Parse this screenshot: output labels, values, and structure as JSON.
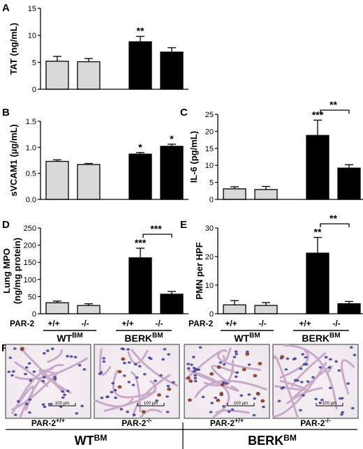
{
  "colors": {
    "wt_bar": "#d9d9d9",
    "berk_bar": "#000000",
    "axis": "#000000"
  },
  "row_labels": {
    "par2": "PAR-2"
  },
  "groups": {
    "wt": {
      "main": "WT",
      "sup": "BM"
    },
    "berk": {
      "main": "BERK",
      "sup": "BM"
    }
  },
  "genotypes": [
    "+/+",
    "-/-",
    "+/+",
    "-/-"
  ],
  "panel_f": {
    "letter": "F",
    "scale_label": "100 μm",
    "images": [
      {
        "label_main": "PAR-2",
        "label_sup": "+/+",
        "icon": "lung-histology-image"
      },
      {
        "label_main": "PAR-2",
        "label_sup": "-/-",
        "icon": "lung-histology-image"
      },
      {
        "label_main": "PAR-2",
        "label_sup": "+/+",
        "icon": "lung-histology-image"
      },
      {
        "label_main": "PAR-2",
        "label_sup": "-/-",
        "icon": "lung-histology-image"
      }
    ]
  },
  "chart_data": [
    {
      "id": "A",
      "letter": "A",
      "type": "bar",
      "ylabel": "TAT (ng/mL)",
      "ylim": [
        0,
        15
      ],
      "yticks": [
        0,
        5,
        10,
        15
      ],
      "categories": [
        "WT PAR-2+/+",
        "WT PAR-2-/-",
        "BERK PAR-2+/+",
        "BERK PAR-2-/-"
      ],
      "values": [
        5.2,
        5.1,
        8.8,
        6.9
      ],
      "errors": [
        0.9,
        0.6,
        1.0,
        0.8
      ],
      "annotations": [
        "",
        "",
        "**",
        ""
      ],
      "brackets": []
    },
    {
      "id": "B",
      "letter": "B",
      "type": "bar",
      "ylabel": "sVCAM1 (µg/mL)",
      "ylim": [
        0,
        1.5
      ],
      "yticks": [
        0.0,
        0.5,
        1.0,
        1.5
      ],
      "categories": [
        "WT PAR-2+/+",
        "WT PAR-2-/-",
        "BERK PAR-2+/+",
        "BERK PAR-2-/-"
      ],
      "values": [
        0.73,
        0.67,
        0.87,
        1.02
      ],
      "errors": [
        0.03,
        0.02,
        0.03,
        0.04
      ],
      "annotations": [
        "",
        "",
        "*",
        "*"
      ],
      "brackets": []
    },
    {
      "id": "C",
      "letter": "C",
      "type": "bar",
      "ylabel": "IL-6 (pg/mL)",
      "ylim": [
        0,
        25
      ],
      "yticks": [
        0,
        5,
        10,
        15,
        20,
        25
      ],
      "categories": [
        "WT PAR-2+/+",
        "WT PAR-2-/-",
        "BERK PAR-2+/+",
        "BERK PAR-2-/-"
      ],
      "values": [
        3.1,
        2.9,
        18.8,
        9.2
      ],
      "errors": [
        0.6,
        0.9,
        4.5,
        1.0
      ],
      "annotations": [
        "",
        "",
        "***",
        ""
      ],
      "brackets": [
        {
          "from": 2,
          "to": 3,
          "label": "**"
        }
      ]
    },
    {
      "id": "D",
      "letter": "D",
      "type": "bar",
      "ylabel": "Lung MPO\n(ng/mg protein)",
      "ylim": [
        0,
        250
      ],
      "yticks": [
        0,
        50,
        100,
        150,
        200,
        250
      ],
      "categories": [
        "WT PAR-2+/+",
        "WT PAR-2-/-",
        "BERK PAR-2+/+",
        "BERK PAR-2-/-"
      ],
      "values": [
        32,
        24,
        163,
        57
      ],
      "errors": [
        5,
        5,
        28,
        8
      ],
      "annotations": [
        "",
        "",
        "***",
        ""
      ],
      "brackets": [
        {
          "from": 2,
          "to": 3,
          "label": "***"
        }
      ]
    },
    {
      "id": "E",
      "letter": "E",
      "type": "bar",
      "ylabel": "PMN per HPF",
      "ylim": [
        0,
        30
      ],
      "yticks": [
        0,
        10,
        20,
        30
      ],
      "categories": [
        "WT PAR-2+/+",
        "WT PAR-2-/-",
        "BERK PAR-2+/+",
        "BERK PAR-2-/-"
      ],
      "values": [
        3.1,
        2.9,
        21.2,
        3.5
      ],
      "errors": [
        1.5,
        1.0,
        5.5,
        0.8
      ],
      "annotations": [
        "",
        "",
        "**",
        ""
      ],
      "brackets": [
        {
          "from": 2,
          "to": 3,
          "label": "**"
        }
      ]
    }
  ]
}
